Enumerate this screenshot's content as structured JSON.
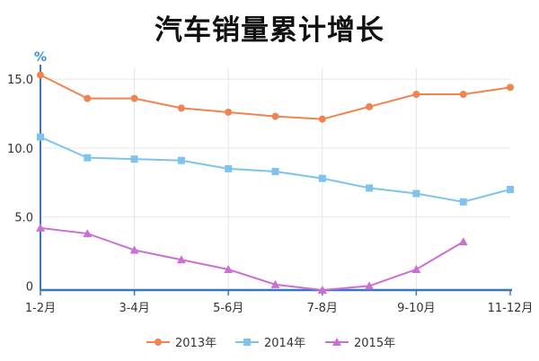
{
  "page": {
    "title": "汽车销量累计增长"
  },
  "chart_data": {
    "type": "line",
    "title": "汽车销量累计增长",
    "ylabel": "%",
    "xlabel": "",
    "x_positions": [
      "1-2月",
      "",
      "3-4月",
      "",
      "5-6月",
      "",
      "7-8月",
      "",
      "9-10月",
      "",
      "11-12月"
    ],
    "x_tick_labels": [
      "1-2月",
      "3-4月",
      "5-6月",
      "7-8月",
      "9-10月",
      "11-12月"
    ],
    "y_ticks": [
      "15.0",
      "10.0",
      "5.0",
      "0"
    ],
    "ylim": [
      0,
      15.5
    ],
    "grid": true,
    "legend_position": "bottom",
    "series": [
      {
        "name": "2013年",
        "color": "#f0834f",
        "marker": "circle",
        "values": [
          15.3,
          13.6,
          13.6,
          12.9,
          12.6,
          12.3,
          12.1,
          13.0,
          13.9,
          13.9,
          14.4
        ]
      },
      {
        "name": "2014年",
        "color": "#7dc3ee",
        "marker": "square",
        "values": [
          10.8,
          9.3,
          9.2,
          9.1,
          8.5,
          8.3,
          7.8,
          7.1,
          6.7,
          6.1,
          7.0
        ]
      },
      {
        "name": "2015年",
        "color": "#cc6fd5",
        "marker": "triangle",
        "values": [
          4.2,
          3.8,
          2.6,
          1.9,
          1.2,
          0.1,
          -0.3,
          0.0,
          1.2,
          3.2,
          null
        ]
      }
    ]
  }
}
